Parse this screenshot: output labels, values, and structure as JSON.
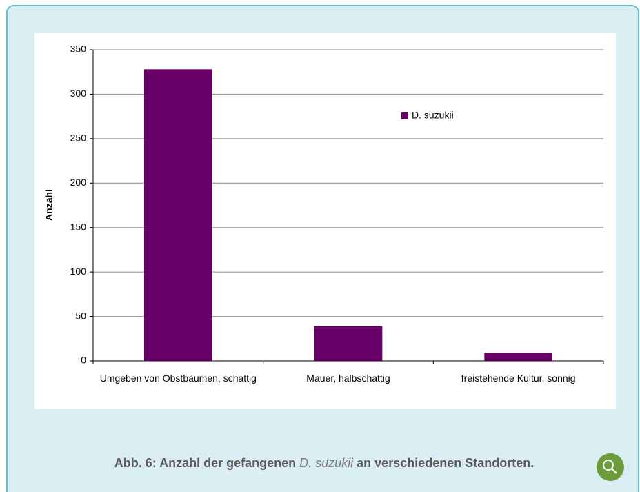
{
  "chart_data": {
    "type": "bar",
    "y_label": "Anzahl",
    "categories": [
      "Umgeben von Obstbäumen, schattig",
      "Mauer, halbschattig",
      "freistehende Kultur, sonnig"
    ],
    "series": [
      {
        "name": "D. suzukii",
        "color": "#660066",
        "values": [
          328,
          39,
          9
        ]
      }
    ],
    "ylim": [
      0,
      350
    ],
    "yticks": [
      0,
      50,
      100,
      150,
      200,
      250,
      300,
      350
    ],
    "grid": true,
    "legend": "upper-right"
  },
  "caption": {
    "before": "Abb. 6: Anzahl der gefangenen ",
    "italic": "D. suzukii",
    "after": " an verschiedenen Standorten."
  }
}
